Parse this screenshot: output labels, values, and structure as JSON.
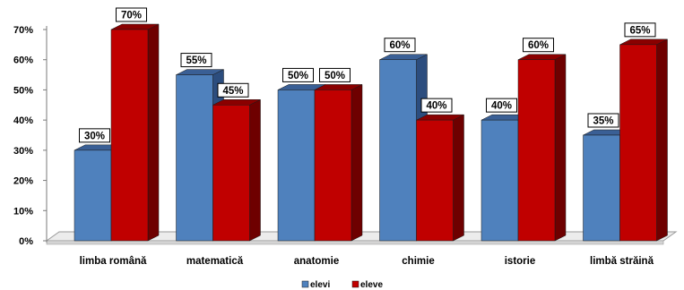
{
  "chart_data": {
    "type": "bar",
    "categories": [
      "limba română",
      "matematică",
      "anatomie",
      "chimie",
      "istorie",
      "limbă străină"
    ],
    "series": [
      {
        "name": "elevi",
        "values": [
          30,
          55,
          50,
          60,
          40,
          35
        ],
        "color": "#4f81bd",
        "side_color": "#2c4d7e",
        "top_color": "#3a5f95"
      },
      {
        "name": "eleve",
        "values": [
          70,
          45,
          50,
          40,
          60,
          65
        ],
        "color": "#c00000",
        "side_color": "#6e0000",
        "top_color": "#8a0000"
      }
    ],
    "data_labels": {
      "elevi": [
        "30%",
        "55%",
        "50%",
        "60%",
        "40%",
        "35%"
      ],
      "eleve": [
        "70%",
        "45%",
        "50%",
        "40%",
        "60%",
        "65%"
      ]
    },
    "y_ticks": [
      "0%",
      "10%",
      "20%",
      "30%",
      "40%",
      "50%",
      "60%",
      "70%"
    ],
    "ylim": [
      0,
      70
    ],
    "grid": false,
    "legend_position": "bottom",
    "title": "",
    "xlabel": "",
    "ylabel": ""
  }
}
